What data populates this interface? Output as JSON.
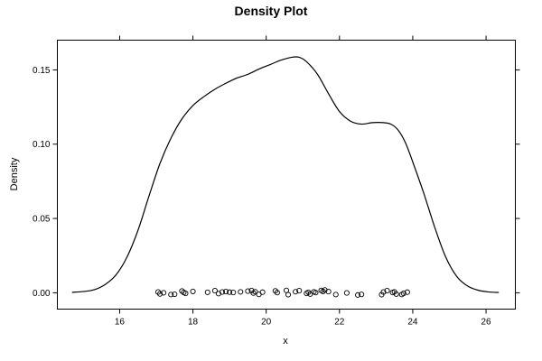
{
  "chart_data": {
    "type": "line",
    "title": "Density Plot",
    "xlabel": "x",
    "ylabel": "Density",
    "xlim": [
      14.3,
      26.8
    ],
    "ylim": [
      -0.011,
      0.17
    ],
    "x_ticks": [
      16,
      18,
      20,
      22,
      24,
      26
    ],
    "x_tick_labels": [
      "16",
      "18",
      "20",
      "22",
      "24",
      "26"
    ],
    "y_ticks": [
      0.0,
      0.05,
      0.1,
      0.15
    ],
    "y_tick_labels": [
      "0.00",
      "0.05",
      "0.10",
      "0.15"
    ],
    "grid": false,
    "legend": "none",
    "line_color": "#000000",
    "series": [
      {
        "x": [
          14.7,
          15.0,
          15.3,
          15.6,
          15.9,
          16.2,
          16.5,
          16.8,
          17.1,
          17.4,
          17.7,
          18.0,
          18.3,
          18.6,
          18.9,
          19.2,
          19.5,
          19.8,
          20.1,
          20.4,
          20.7,
          20.9,
          21.1,
          21.4,
          21.7,
          22.0,
          22.3,
          22.6,
          22.9,
          23.2,
          23.4,
          23.6,
          23.8,
          24.0,
          24.3,
          24.6,
          24.9,
          25.2,
          25.5,
          25.8,
          26.1,
          26.35
        ],
        "y": [
          0.0003,
          0.0008,
          0.002,
          0.0055,
          0.012,
          0.024,
          0.042,
          0.065,
          0.087,
          0.104,
          0.117,
          0.126,
          0.132,
          0.137,
          0.141,
          0.1445,
          0.147,
          0.1505,
          0.1535,
          0.1565,
          0.1585,
          0.1585,
          0.1555,
          0.147,
          0.134,
          0.122,
          0.1155,
          0.1135,
          0.1145,
          0.1145,
          0.1135,
          0.1095,
          0.101,
          0.088,
          0.067,
          0.044,
          0.024,
          0.011,
          0.0045,
          0.0016,
          0.0005,
          0.0002
        ]
      }
    ],
    "rug_points": {
      "marker": "open-circle",
      "x": [
        17.05,
        17.1,
        17.2,
        17.4,
        17.5,
        17.7,
        17.75,
        17.8,
        18.0,
        18.4,
        18.6,
        18.7,
        18.8,
        18.9,
        19.0,
        19.1,
        19.3,
        19.5,
        19.6,
        19.65,
        19.7,
        19.8,
        19.9,
        20.25,
        20.3,
        20.55,
        20.6,
        20.8,
        20.9,
        21.1,
        21.15,
        21.2,
        21.3,
        21.35,
        21.5,
        21.55,
        21.6,
        21.7,
        21.9,
        22.2,
        22.5,
        22.6,
        23.15,
        23.2,
        23.3,
        23.45,
        23.5,
        23.55,
        23.7,
        23.75,
        23.85
      ],
      "y": [
        0.0005,
        -0.0008,
        0.0,
        -0.0012,
        -0.001,
        0.0012,
        0.0002,
        -0.0004,
        0.0009,
        0.0003,
        0.0014,
        -0.0006,
        0.0005,
        0.0008,
        0.0004,
        0.0002,
        0.0006,
        0.0011,
        0.0015,
        -0.0002,
        0.0007,
        -0.0011,
        0.0004,
        0.0013,
        0.0001,
        0.0016,
        -0.0013,
        0.0007,
        0.0014,
        -0.0004,
        0.0003,
        -0.0009,
        0.0006,
        0.0001,
        0.0016,
        0.0009,
        0.0019,
        0.0008,
        -0.0012,
        -0.0001,
        -0.0015,
        -0.0011,
        -0.0013,
        0.0005,
        0.0014,
        0.0002,
        0.0006,
        -0.0009,
        -0.0012,
        -0.0004,
        0.0004
      ]
    }
  }
}
